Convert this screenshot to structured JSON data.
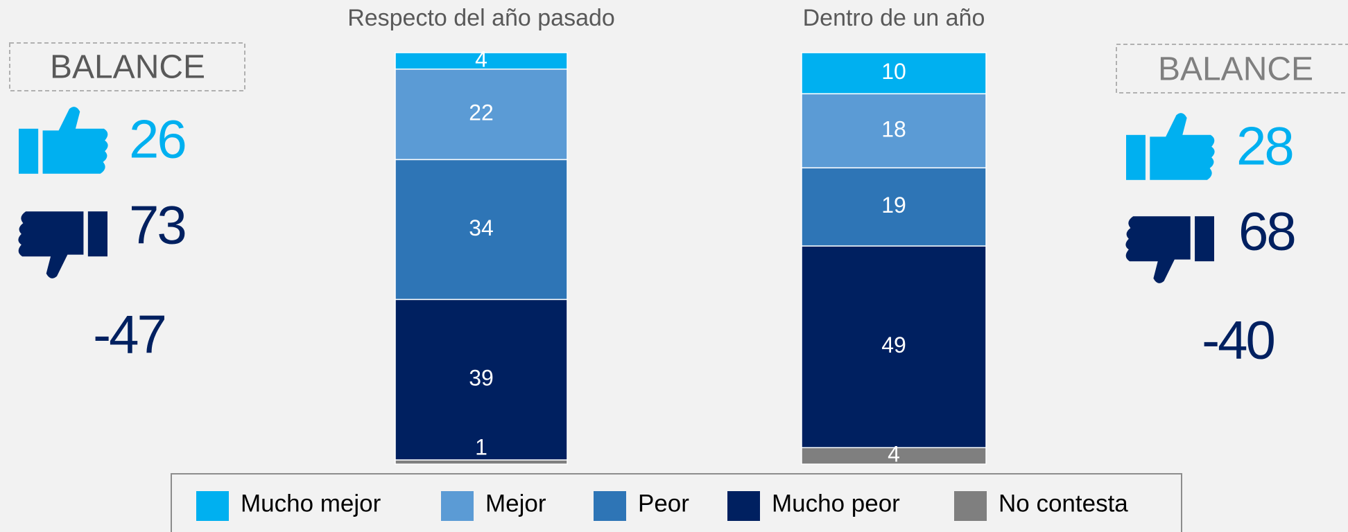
{
  "chart_data": {
    "type": "stacked_bar",
    "categories": [
      "Respecto del año pasado",
      "Dentro de un año"
    ],
    "series": [
      {
        "name": "Mucho mejor",
        "color": "#00b0f0",
        "values": [
          4,
          10
        ]
      },
      {
        "name": "Mejor",
        "color": "#5b9bd5",
        "values": [
          22,
          18
        ]
      },
      {
        "name": "Peor",
        "color": "#2e75b6",
        "values": [
          34,
          19
        ]
      },
      {
        "name": "Mucho peor",
        "color": "#002060",
        "values": [
          39,
          49
        ]
      },
      {
        "name": "No contesta",
        "color": "#7f7f7f",
        "values": [
          1,
          4
        ]
      }
    ],
    "ylim": [
      0,
      100
    ]
  },
  "balance": [
    {
      "label": "BALANCE",
      "positive": 26,
      "negative": 73,
      "net": -47
    },
    {
      "label": "BALANCE",
      "positive": 28,
      "negative": 68,
      "net": -40
    }
  ]
}
